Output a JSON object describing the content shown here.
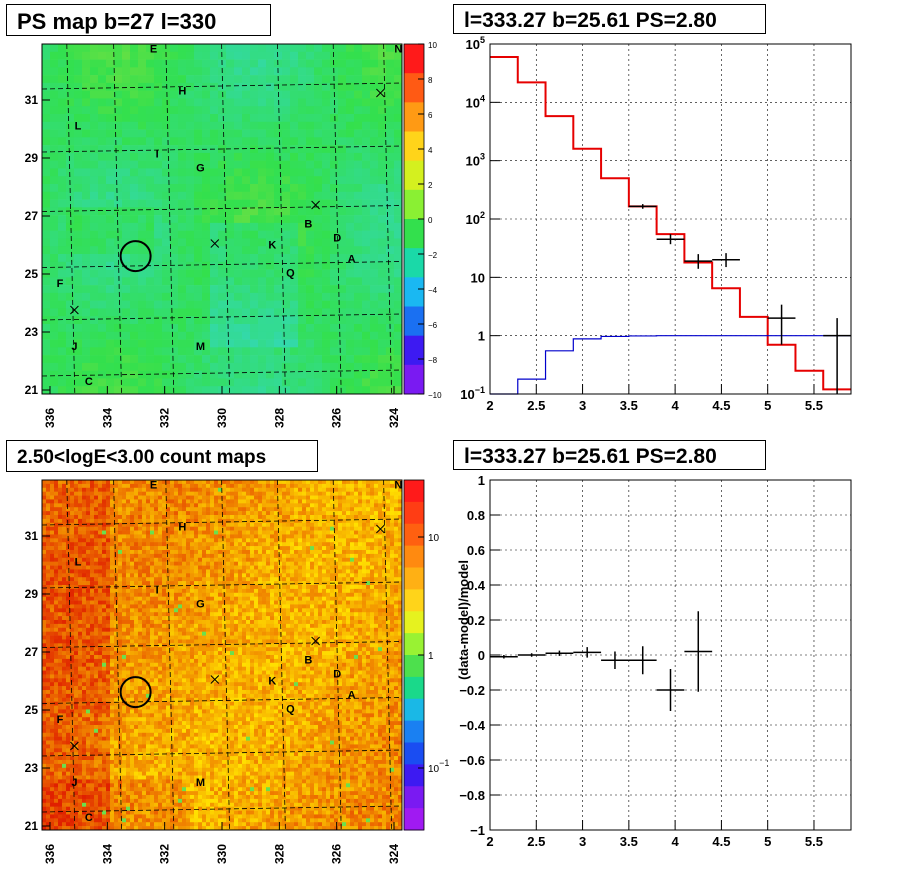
{
  "titles": {
    "ps_map": "PS map b=27 l=330",
    "spectrum": "l=333.27 b=25.61 PS=2.80",
    "count_map": "2.50<logE<3.00 count maps",
    "residual": "l=333.27 b=25.61 PS=2.80"
  },
  "chart_data": [
    {
      "type": "heatmap",
      "name": "ps_map",
      "title": "PS map b=27 l=330",
      "x_ticks": [
        "336",
        "334",
        "332",
        "330",
        "328",
        "326",
        "324"
      ],
      "y_ticks": [
        "31",
        "29",
        "27",
        "25",
        "23",
        "21"
      ],
      "colorbar_ticks": [
        "10",
        "8",
        "6",
        "4",
        "2",
        "0",
        "−2",
        "−4",
        "−6",
        "−8",
        "−10"
      ],
      "zlim": [
        -10,
        10
      ],
      "dominant_value": 0,
      "colors": {
        "background": "#33e04d"
      },
      "source_labels": [
        "E",
        "N",
        "H",
        "L",
        "I",
        "G",
        "B",
        "D",
        "K",
        "A",
        "Q",
        "F",
        "J",
        "M",
        "C"
      ],
      "marker": {
        "l": 333.27,
        "b": 25.61
      }
    },
    {
      "type": "line",
      "name": "spectrum",
      "title": "l=333.27 b=25.61 PS=2.80",
      "xlim": [
        2,
        5.9
      ],
      "ylim": [
        0.1,
        100000
      ],
      "yscale": "log",
      "x_ticks": [
        "2",
        "2.5",
        "3",
        "3.5",
        "4",
        "4.5",
        "5",
        "5.5"
      ],
      "y_ticks": [
        "10^5",
        "10^4",
        "10^3",
        "10^2",
        "10",
        "1",
        "10^-1"
      ],
      "grid": true,
      "series": [
        {
          "color": "#e60000",
          "style": "step",
          "edges": [
            2.0,
            2.3,
            2.6,
            2.9,
            3.2,
            3.5,
            3.8,
            4.1,
            4.4,
            4.7,
            5.0,
            5.3,
            5.6,
            5.9
          ],
          "values": [
            60000,
            22000,
            5800,
            1600,
            500,
            165,
            55,
            18,
            6.5,
            2.1,
            0.7,
            0.25,
            0.12
          ]
        },
        {
          "color": "#0000cc",
          "style": "step",
          "edges": [
            2.0,
            2.3,
            2.6,
            2.9,
            3.2,
            3.5,
            3.8,
            4.1,
            4.4,
            4.7,
            5.0,
            5.3,
            5.6,
            5.9
          ],
          "values": [
            0.09,
            0.18,
            0.55,
            0.88,
            0.97,
            0.99,
            1.0,
            1.0,
            1.0,
            1.0,
            1.0,
            1.0,
            1.0
          ]
        },
        {
          "color": "#000000",
          "style": "points",
          "points": [
            {
              "x": 3.65,
              "y": 165,
              "xerr": 0.15,
              "ylo": 150,
              "yhi": 180
            },
            {
              "x": 3.95,
              "y": 45,
              "xerr": 0.15,
              "ylo": 37,
              "yhi": 55
            },
            {
              "x": 4.25,
              "y": 19,
              "xerr": 0.15,
              "ylo": 14,
              "yhi": 25
            },
            {
              "x": 4.55,
              "y": 20,
              "xerr": 0.15,
              "ylo": 15,
              "yhi": 26
            },
            {
              "x": 5.15,
              "y": 2.0,
              "xerr": 0.15,
              "ylo": 0.7,
              "yhi": 3.4
            },
            {
              "x": 5.75,
              "y": 1.0,
              "xerr": 0.15,
              "ylo": 0.1,
              "yhi": 2.0
            }
          ]
        }
      ]
    },
    {
      "type": "heatmap",
      "name": "count_map",
      "title": "2.50<logE<3.00 count maps",
      "x_ticks": [
        "336",
        "334",
        "332",
        "330",
        "328",
        "326",
        "324"
      ],
      "y_ticks": [
        "31",
        "29",
        "27",
        "25",
        "23",
        "21"
      ],
      "colorbar_ticks": [
        "10",
        "1",
        "10^-1"
      ],
      "zscale": "log",
      "colors": {
        "low": "#ffe000",
        "high": "#e02000"
      },
      "source_labels": [
        "E",
        "N",
        "H",
        "L",
        "I",
        "G",
        "B",
        "D",
        "K",
        "A",
        "Q",
        "F",
        "J",
        "M",
        "C"
      ],
      "marker": {
        "l": 333.27,
        "b": 25.61
      }
    },
    {
      "type": "scatter",
      "name": "residual",
      "title": "l=333.27 b=25.61 PS=2.80",
      "ylabel": "(data-model)/model",
      "xlim": [
        2,
        5.9
      ],
      "ylim": [
        -1,
        1
      ],
      "x_ticks": [
        "2",
        "2.5",
        "3",
        "3.5",
        "4",
        "4.5",
        "5",
        "5.5"
      ],
      "y_ticks": [
        "1",
        "0.8",
        "0.6",
        "0.4",
        "0.2",
        "0",
        "−0.2",
        "−0.4",
        "−0.6",
        "−0.8",
        "−1"
      ],
      "grid": true,
      "points": [
        {
          "x": 2.15,
          "y": -0.01,
          "xerr": 0.15,
          "yerr": 0.01
        },
        {
          "x": 2.45,
          "y": 0.0,
          "xerr": 0.15,
          "yerr": 0.01
        },
        {
          "x": 2.75,
          "y": 0.01,
          "xerr": 0.15,
          "yerr": 0.015
        },
        {
          "x": 3.05,
          "y": 0.015,
          "xerr": 0.15,
          "yerr": 0.03
        },
        {
          "x": 3.35,
          "y": -0.03,
          "xerr": 0.15,
          "yerr": 0.05
        },
        {
          "x": 3.65,
          "y": -0.03,
          "xerr": 0.15,
          "yerr": 0.08
        },
        {
          "x": 3.95,
          "y": -0.2,
          "xerr": 0.15,
          "yerr": 0.12
        },
        {
          "x": 4.25,
          "y": 0.02,
          "xerr": 0.15,
          "yerr": 0.23
        }
      ]
    }
  ]
}
